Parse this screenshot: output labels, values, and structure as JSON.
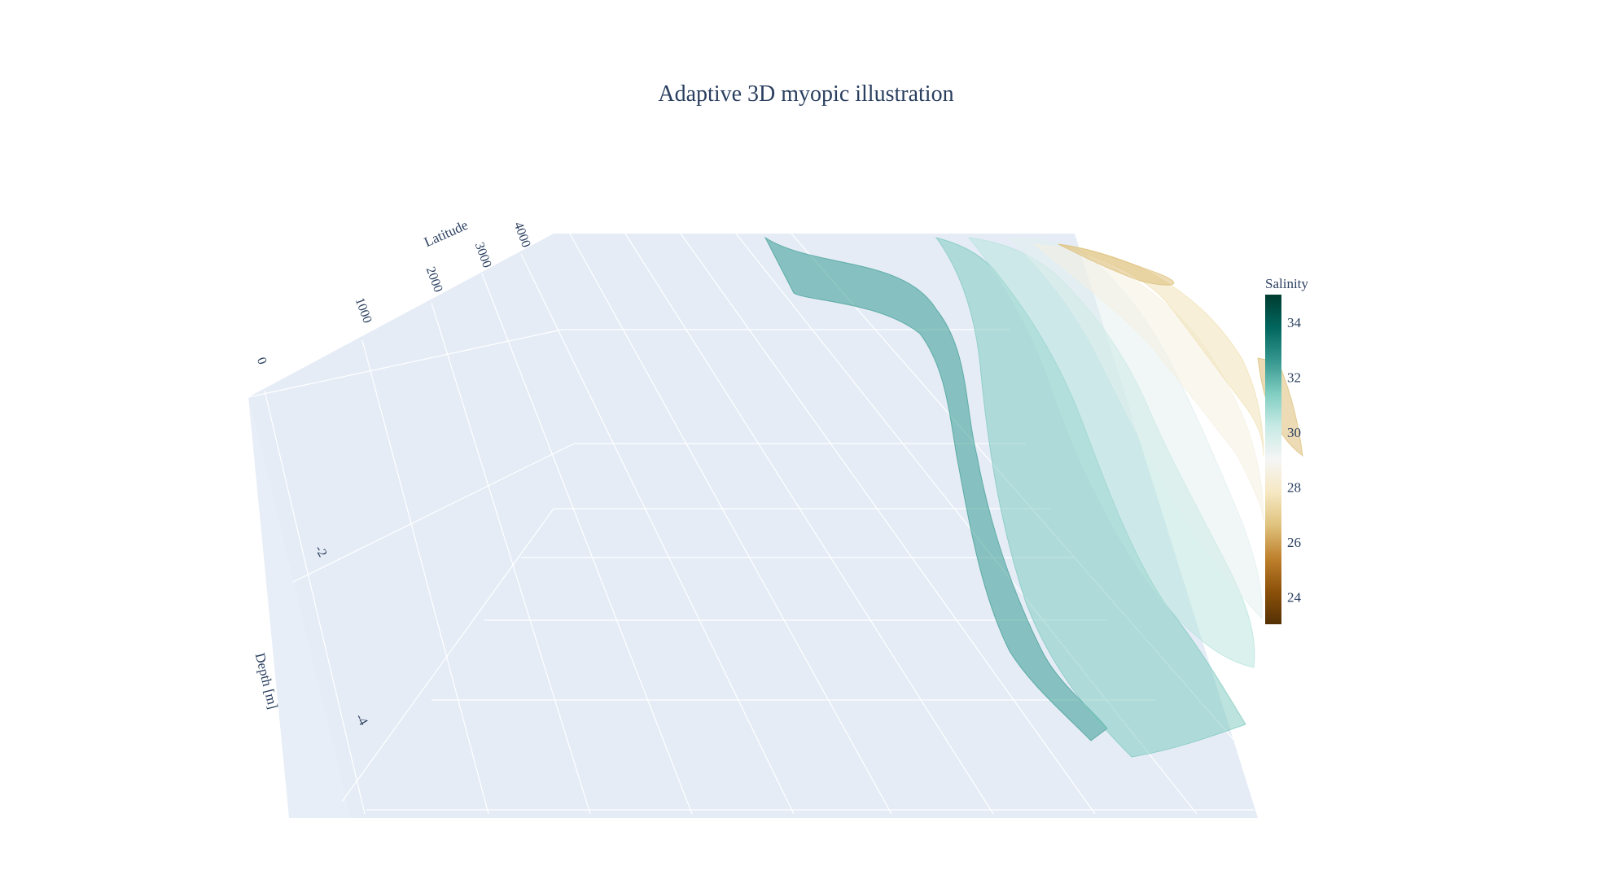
{
  "chart_data": {
    "type": "surface3d",
    "title": "Adaptive 3D myopic illustration",
    "axes": {
      "latitude": {
        "label": "Latitude",
        "ticks": [
          0,
          1000,
          2000,
          3000,
          4000
        ],
        "range": [
          0,
          4000
        ]
      },
      "depth": {
        "label": "Depth [m]",
        "ticks": [
          -2,
          -4
        ],
        "range": [
          -5,
          0
        ]
      }
    },
    "colorbar": {
      "title": "Salinity",
      "ticks": [
        34,
        32,
        30,
        28,
        26,
        24
      ],
      "range": [
        23,
        35
      ],
      "colorscale": [
        "#543005",
        "#8c510a",
        "#bf812d",
        "#dfc27d",
        "#f6e8c3",
        "#f5f5f5",
        "#c7eae5",
        "#80cdc1",
        "#35978f",
        "#01665e",
        "#003c30"
      ]
    },
    "surfaces": [
      {
        "salinity": 32.5,
        "opacity": 0.55
      },
      {
        "salinity": 31.5,
        "opacity": 0.5
      },
      {
        "salinity": 30.5,
        "opacity": 0.5
      },
      {
        "salinity": 29.5,
        "opacity": 0.5
      },
      {
        "salinity": 28.5,
        "opacity": 0.5
      },
      {
        "salinity": 27.5,
        "opacity": 0.5
      },
      {
        "salinity": 26.5,
        "opacity": 0.55
      }
    ],
    "grid": true,
    "legend": "none"
  }
}
